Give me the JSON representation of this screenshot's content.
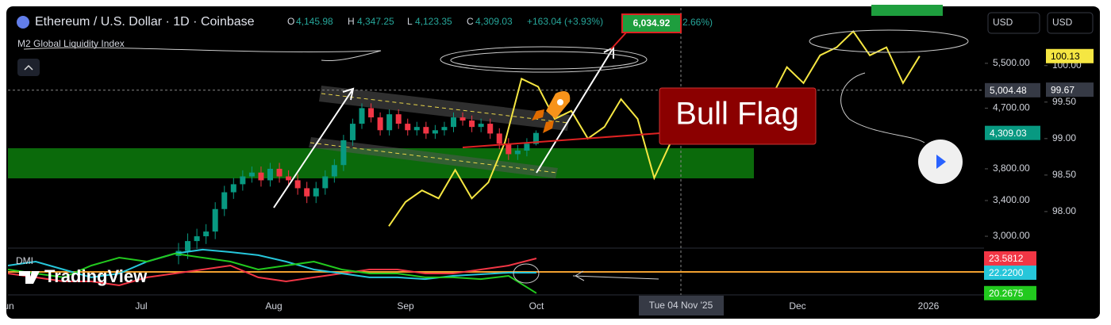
{
  "header": {
    "symbol": "Ethereum / U.S. Dollar · 1D · Coinbase",
    "ohlc_keys": [
      "O",
      "H",
      "L",
      "C"
    ],
    "ohlc": [
      "4,145.98",
      "4,347.25",
      "4,123.35",
      "4,309.03"
    ],
    "change": "+163.04 (+3.93%)",
    "partial_change": "2.66%)",
    "currency_buttons": [
      "USD",
      "USD"
    ]
  },
  "time_axis": {
    "labels": [
      "Jun",
      "Jul",
      "Aug",
      "Sep",
      "Oct",
      "Dec",
      "2026"
    ],
    "crosshair_label": "Tue 04 Nov '25"
  },
  "watermark": "TradingView",
  "chart_data": [
    {
      "type": "candlestick",
      "title": "Ethereum / U.S. Dollar · 1D · Coinbase",
      "log_scale": true,
      "grid": false,
      "color_up": "#089981",
      "color_down": "#f23645",
      "ylim": [
        2886,
        6677
      ],
      "yticks": [
        {
          "value": 3000,
          "label": "3,000.00"
        },
        {
          "value": 3400,
          "label": "3,400.00"
        },
        {
          "value": 3800,
          "label": "3,800.00"
        },
        {
          "value": 4300,
          "label": "4,300.00"
        },
        {
          "value": 4700,
          "label": "4,700.00"
        },
        {
          "value": 5500,
          "label": "5,500.00"
        }
      ],
      "open": [
        2800,
        2850,
        2950,
        3000,
        3050,
        3300,
        3500,
        3600,
        3700,
        3750,
        3650,
        3800,
        3700,
        3650,
        3550,
        3450,
        3550,
        3700,
        3850,
        4200,
        4450,
        4700,
        4550,
        4350,
        4600,
        4450,
        4350,
        4400,
        4300,
        4350,
        4400,
        4550,
        4500,
        4400,
        4450,
        4300,
        4150,
        4000,
        4050,
        4145.98
      ],
      "high": [
        2930,
        3030,
        3080,
        3130,
        3380,
        3580,
        3680,
        3780,
        3830,
        3830,
        3880,
        3880,
        3780,
        3730,
        3630,
        3630,
        3780,
        3930,
        4280,
        4530,
        4780,
        4780,
        4630,
        4680,
        4680,
        4530,
        4480,
        4480,
        4430,
        4480,
        4630,
        4630,
        4580,
        4530,
        4530,
        4380,
        4230,
        4130,
        4230,
        4347.25
      ],
      "low": [
        2720,
        2770,
        2870,
        2920,
        2970,
        3220,
        3420,
        3520,
        3620,
        3570,
        3570,
        3620,
        3570,
        3470,
        3370,
        3370,
        3470,
        3620,
        3770,
        4120,
        4370,
        4470,
        4270,
        4270,
        4370,
        4270,
        4270,
        4220,
        4220,
        4270,
        4320,
        4420,
        4320,
        4320,
        4220,
        4070,
        3920,
        3920,
        3970,
        4123.35
      ],
      "close": [
        2850,
        2950,
        3000,
        3050,
        3300,
        3500,
        3600,
        3700,
        3750,
        3650,
        3800,
        3700,
        3650,
        3550,
        3450,
        3550,
        3700,
        3850,
        4200,
        4450,
        4700,
        4550,
        4350,
        4600,
        4450,
        4350,
        4400,
        4300,
        4350,
        4400,
        4550,
        4500,
        4400,
        4450,
        4300,
        4150,
        4000,
        4050,
        4150,
        4309.03
      ],
      "last_value_tag": {
        "value": 4309.03,
        "label": "4,309.03"
      },
      "crosshair_tag": {
        "value": 5004.48,
        "label": "5,004.48"
      },
      "annotations": {
        "pattern": "Bull Flag",
        "target": "6,034.92"
      }
    },
    {
      "type": "line",
      "title": "M2 Global Liquidity Index",
      "color": "#f5e642",
      "grid": false,
      "values": [
        97.8,
        98.13,
        98.29,
        98.18,
        98.57,
        98.18,
        98.4,
        98.95,
        99.82,
        99.71,
        99.27,
        99.38,
        99.0,
        99.16,
        99.54,
        99.27,
        98.46,
        98.95,
        99.27,
        99.16,
        99.49,
        99.27,
        99.43,
        99.54,
        99.98,
        99.76,
        100.14,
        100.25,
        100.47,
        100.14,
        100.25,
        99.76,
        100.13
      ],
      "ylim": [
        97.51,
        100.79
      ],
      "yticks": [
        {
          "value": 98,
          "label": "98.00"
        },
        {
          "value": 98.5,
          "label": "98.50"
        },
        {
          "value": 99,
          "label": "99.00"
        },
        {
          "value": 99.5,
          "label": "99.50"
        },
        {
          "value": 100,
          "label": "100.00"
        }
      ],
      "last_value_tag": {
        "value": 100.13,
        "label": "100.13"
      },
      "crosshair_tag": {
        "value": 99.67,
        "label": "99.67"
      }
    },
    {
      "type": "line",
      "title": "DMI",
      "ylim": [
        20.1,
        24.49
      ],
      "series": [
        {
          "color": "#f23645",
          "values": [
            22.14,
            21.77,
            21.39,
            21.39,
            21.01,
            21.77,
            22.14,
            22.52,
            22.9,
            21.77,
            21.39,
            21.77,
            22.14,
            22.52,
            22.52,
            22.14,
            22.14,
            22.52,
            22.9,
            23.5812
          ],
          "last_value_tag": {
            "value": 23.5812,
            "label": "23.5812"
          }
        },
        {
          "color": "#26c6da",
          "values": [
            22.9,
            23.28,
            22.52,
            21.77,
            22.14,
            23.28,
            24.04,
            24.42,
            24.19,
            23.89,
            23.28,
            22.52,
            22.14,
            21.77,
            21.77,
            21.61,
            21.92,
            22.07,
            22.22,
            22.22
          ],
          "last_value_tag": {
            "value": 22.22,
            "label": "22.2200"
          }
        },
        {
          "color": "#22c91e",
          "values": [
            22.52,
            22.14,
            21.77,
            22.9,
            23.66,
            23.28,
            24.04,
            23.66,
            23.28,
            22.52,
            22.9,
            23.28,
            22.52,
            22.14,
            22.14,
            21.77,
            21.77,
            21.61,
            21.92,
            20.2675
          ],
          "last_value_tag": {
            "value": 20.2675,
            "label": "20.2675"
          }
        }
      ]
    }
  ]
}
